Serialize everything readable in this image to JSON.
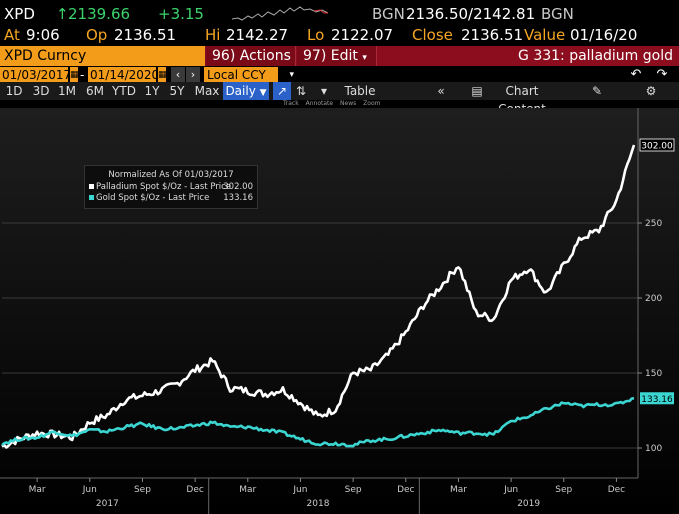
{
  "ticker": {
    "symbol": "XPD",
    "arrow": "↑",
    "last": "2139.66",
    "change": "+3.15",
    "bgn_label": "BGN",
    "bid_ask": "2136.50/2142.81",
    "bgn_label2": "BGN"
  },
  "stats": {
    "at_label": "At",
    "at": "9:06",
    "op_label": "Op",
    "op": "2136.51",
    "hi_label": "Hi",
    "hi": "2142.27",
    "lo_label": "Lo",
    "lo": "2122.07",
    "close_label": "Close",
    "close": "2136.51",
    "value_label": "Value",
    "value": "01/16/20"
  },
  "security": {
    "name": "XPD Curncy",
    "actions_num": "96)",
    "actions_label": "Actions",
    "edit_num": "97)",
    "edit_label": "Edit",
    "page": "G 331: palladium gold"
  },
  "daterange": {
    "start": "01/03/2017",
    "dash": "-",
    "end": "01/14/2020",
    "currency": "Local CCY"
  },
  "toolbar": {
    "ranges": [
      "1D",
      "3D",
      "1M",
      "6M",
      "YTD",
      "1Y",
      "5Y",
      "Max"
    ],
    "interval": "Daily",
    "table_label": "Table",
    "chart_content_label": "Chart Content",
    "subtools": [
      "Track",
      "Annotate",
      "News",
      "Zoom"
    ]
  },
  "legend": {
    "title": "Normalized As Of 01/03/2017",
    "series1": "Palladium Spot $/Oz - Last Price",
    "series1_value": "302.00",
    "series2": "Gold Spot $/Oz - Last Price",
    "series2_value": "133.16"
  },
  "colors": {
    "palladium": "#ffffff",
    "gold": "#3cd6d2",
    "accent_orange": "#f39c1a",
    "accent_red": "#8b0d1e",
    "green": "#3bd36b"
  },
  "chart_data": {
    "type": "line",
    "title": "",
    "ylim": [
      80,
      320
    ],
    "y_ticks": [
      100,
      150,
      200,
      250
    ],
    "month_ticks": [
      "Mar",
      "Jun",
      "Sep",
      "Dec",
      "Mar",
      "Jun",
      "Sep",
      "Dec",
      "Mar",
      "Jun",
      "Sep",
      "Dec"
    ],
    "year_labels": [
      "2017",
      "2018",
      "2019"
    ],
    "last_value_labels": [
      "302.00",
      "133.16"
    ],
    "x": [
      "2017-01",
      "2017-02",
      "2017-03",
      "2017-04",
      "2017-05",
      "2017-06",
      "2017-07",
      "2017-08",
      "2017-09",
      "2017-10",
      "2017-11",
      "2017-12",
      "2018-01",
      "2018-02",
      "2018-03",
      "2018-04",
      "2018-05",
      "2018-06",
      "2018-07",
      "2018-08",
      "2018-09",
      "2018-10",
      "2018-11",
      "2018-12",
      "2019-01",
      "2019-02",
      "2019-03",
      "2019-04",
      "2019-05",
      "2019-06",
      "2019-07",
      "2019-08",
      "2019-09",
      "2019-10",
      "2019-11",
      "2019-12",
      "2020-01"
    ],
    "series": [
      {
        "name": "Palladium Spot $/Oz - Last Price",
        "values": [
          101,
          106,
          110,
          109,
          107,
          117,
          122,
          132,
          135,
          138,
          143,
          152,
          158,
          140,
          138,
          136,
          139,
          130,
          121,
          126,
          150,
          152,
          162,
          177,
          195,
          208,
          222,
          190,
          186,
          212,
          220,
          203,
          222,
          240,
          245,
          265,
          302
        ]
      },
      {
        "name": "Gold Spot $/Oz - Last Price",
        "values": [
          103,
          106,
          107,
          111,
          108,
          112,
          111,
          114,
          116,
          113,
          113,
          115,
          117,
          114,
          114,
          112,
          110,
          106,
          103,
          103,
          102,
          105,
          106,
          108,
          110,
          112,
          110,
          110,
          109,
          118,
          121,
          126,
          130,
          128,
          129,
          129,
          133.16
        ]
      }
    ]
  }
}
